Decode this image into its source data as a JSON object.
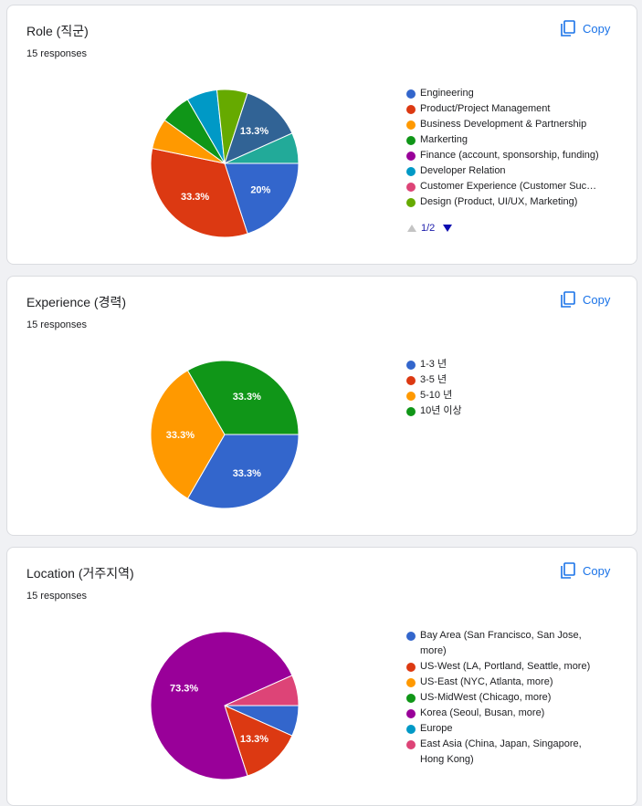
{
  "chart_data": [
    {
      "type": "pie",
      "title": "Role (직군)",
      "subtitle": "15 responses",
      "action": "Copy",
      "legend_page": "1/2",
      "categories": [
        "Engineering",
        "Product/Project Management",
        "Business Development & Partnership",
        "Markerting",
        "Finance (account, sponsorship, funding)",
        "Developer Relation",
        "Customer Experience (Customer Suc…",
        "Design (Product, UI/UX, Marketing)",
        null,
        null
      ],
      "values": [
        20,
        33.3,
        6.7,
        6.7,
        0,
        6.7,
        0,
        6.7,
        13.3,
        6.7
      ],
      "value_labels": [
        "20%",
        "33.3%",
        null,
        null,
        null,
        null,
        null,
        null,
        "13.3%",
        null
      ],
      "colors": [
        "#3366cc",
        "#dc3912",
        "#ff9900",
        "#109618",
        "#990099",
        "#0099c6",
        "#dd4477",
        "#66aa00",
        "#316395",
        "#22aa99"
      ]
    },
    {
      "type": "pie",
      "title": "Experience (경력)",
      "subtitle": "15 responses",
      "action": "Copy",
      "categories": [
        "1-3 년",
        "3-5 년",
        "5-10 년",
        "10년 이상"
      ],
      "values": [
        33.3,
        0,
        33.3,
        33.3
      ],
      "value_labels": [
        "33.3%",
        null,
        "33.3%",
        "33.3%"
      ],
      "colors": [
        "#3366cc",
        "#dc3912",
        "#ff9900",
        "#109618"
      ]
    },
    {
      "type": "pie",
      "title": "Location (거주지역)",
      "subtitle": "15 responses",
      "action": "Copy",
      "categories": [
        "Bay Area (San Francisco, San Jose, more)",
        "US-West (LA, Portland, Seattle, more)",
        "US-East (NYC, Atlanta, more)",
        "US-MidWest (Chicago, more)",
        "Korea (Seoul, Busan, more)",
        "Europe",
        "East Asia (China, Japan, Singapore, Hong Kong)"
      ],
      "values": [
        6.7,
        13.3,
        0,
        0,
        73.3,
        0,
        6.7
      ],
      "value_labels": [
        null,
        "13.3%",
        null,
        null,
        "73.3%",
        null,
        null
      ],
      "colors": [
        "#3366cc",
        "#dc3912",
        "#ff9900",
        "#109618",
        "#990099",
        "#0099c6",
        "#dd4477"
      ]
    }
  ]
}
